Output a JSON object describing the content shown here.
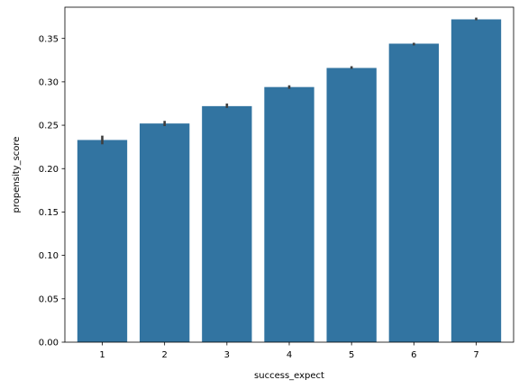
{
  "chart_data": {
    "type": "bar",
    "title": "",
    "xlabel": "success_expect",
    "ylabel": "propensity_score",
    "categories": [
      "1",
      "2",
      "3",
      "4",
      "5",
      "6",
      "7"
    ],
    "values": [
      0.233,
      0.252,
      0.272,
      0.294,
      0.316,
      0.344,
      0.372
    ],
    "error_bars": [
      [
        0.228,
        0.238
      ],
      [
        0.249,
        0.255
      ],
      [
        0.27,
        0.275
      ],
      [
        0.292,
        0.296
      ],
      [
        0.315,
        0.318
      ],
      [
        0.342,
        0.345
      ],
      [
        0.371,
        0.374
      ]
    ],
    "ylim": [
      0,
      0.386
    ],
    "yticks": [
      0.0,
      0.05,
      0.1,
      0.15,
      0.2,
      0.25,
      0.3,
      0.35
    ],
    "ytick_labels": [
      "0.00",
      "0.05",
      "0.10",
      "0.15",
      "0.20",
      "0.25",
      "0.30",
      "0.35"
    ],
    "grid": false,
    "colors": {
      "bar": "#3274a1",
      "error_bar": "#3f3f3f",
      "axis": "#000000"
    }
  }
}
